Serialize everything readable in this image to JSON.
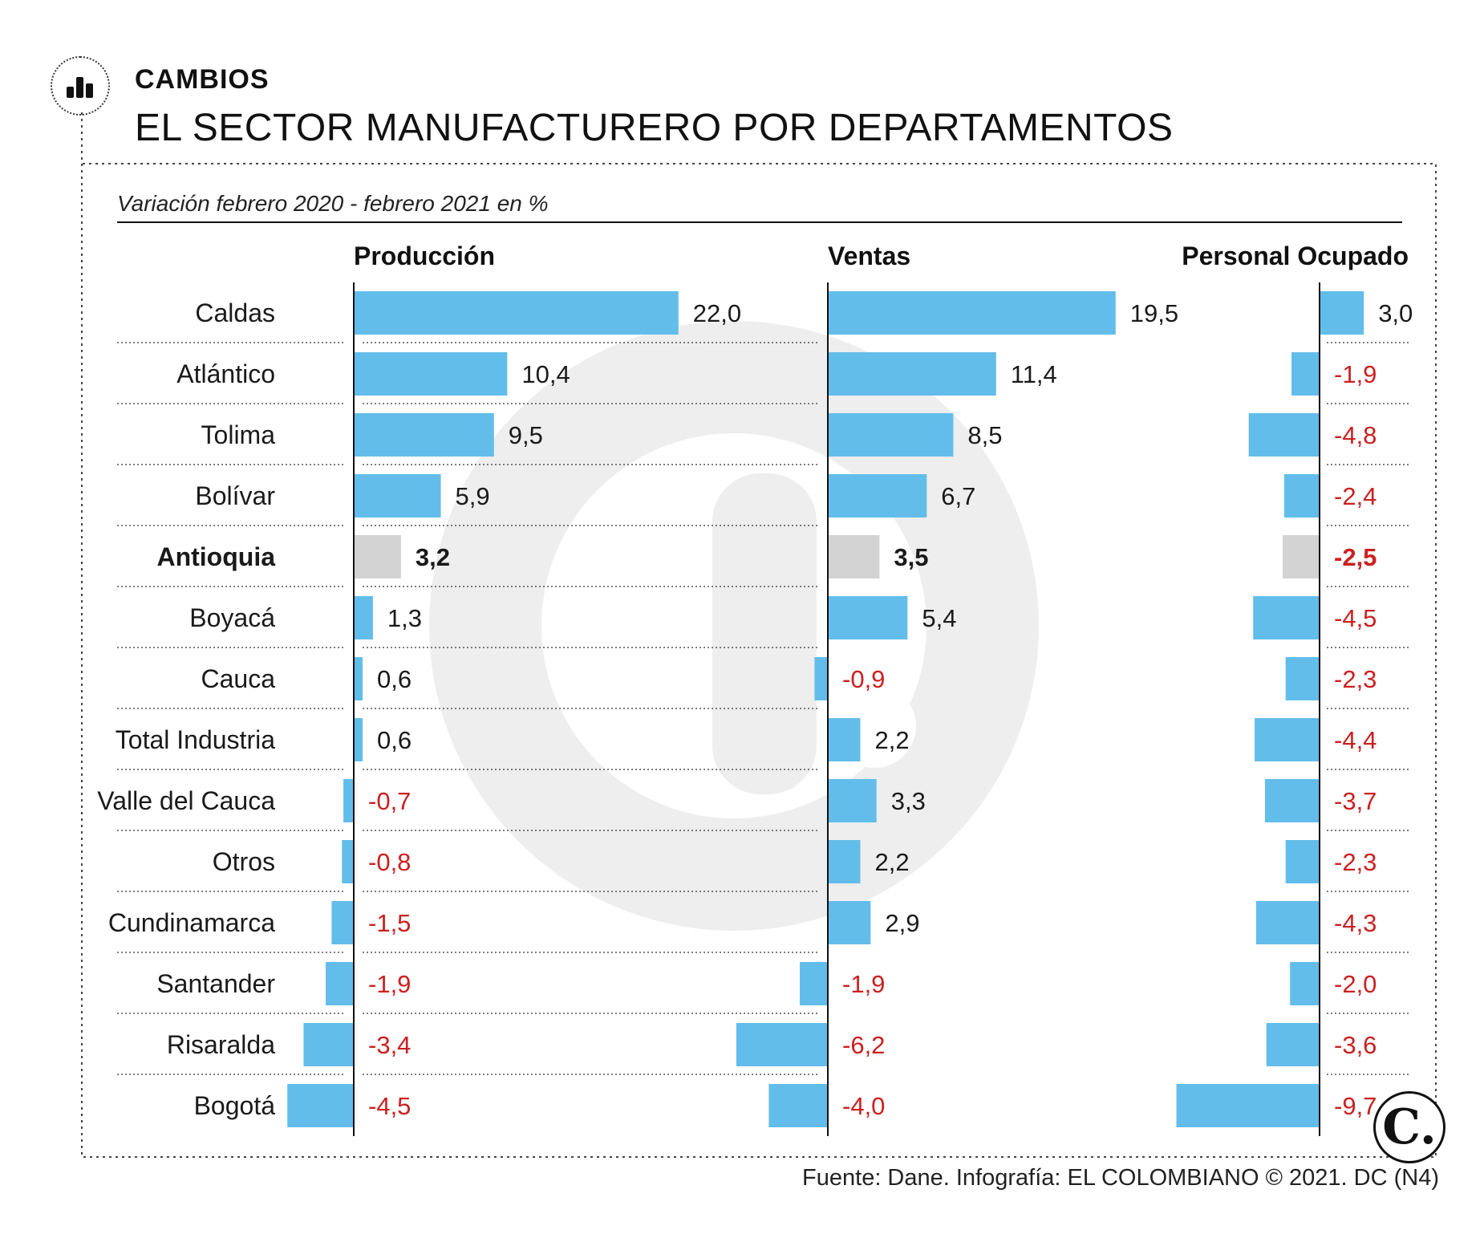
{
  "header": {
    "kicker": "CAMBIOS",
    "title": "EL SECTOR MANUFACTURERO POR DEPARTAMENTOS",
    "icon": "bar-chart-icon"
  },
  "footer": {
    "source": "Fuente: Dane. Infografía: EL COLOMBIANO © 2021. DC (N4)",
    "logo": "C."
  },
  "colors": {
    "bar": "#63bdea",
    "highlight_bar": "#d3d3d3",
    "negative_text": "#cc2020",
    "positive_text": "#1a1a1a"
  },
  "chart_data": {
    "type": "bar",
    "orientation": "horizontal",
    "subtitle": "Variación febrero 2020 - febrero 2021 en %",
    "highlight": "Antioquia",
    "categories": [
      "Caldas",
      "Atlántico",
      "Tolima",
      "Bolívar",
      "Antioquia",
      "Boyacá",
      "Cauca",
      "Total Industria",
      "Valle del Cauca",
      "Otros",
      "Cundinamarca",
      "Santander",
      "Risaralda",
      "Bogotá"
    ],
    "series": [
      {
        "name": "Producción",
        "values": [
          22.0,
          10.4,
          9.5,
          5.9,
          3.2,
          1.3,
          0.6,
          0.6,
          -0.7,
          -0.8,
          -1.5,
          -1.9,
          -3.4,
          -4.5
        ],
        "labels": [
          "22,0",
          "10,4",
          "9,5",
          "5,9",
          "3,2",
          "1,3",
          "0,6",
          "0,6",
          "-0,7",
          "-0,8",
          "-1,5",
          "-1,9",
          "-3,4",
          "-4,5"
        ]
      },
      {
        "name": "Ventas",
        "values": [
          19.5,
          11.4,
          8.5,
          6.7,
          3.5,
          5.4,
          -0.9,
          2.2,
          3.3,
          2.2,
          2.9,
          -1.9,
          -6.2,
          -4.0
        ],
        "labels": [
          "19,5",
          "11,4",
          "8,5",
          "6,7",
          "3,5",
          "5,4",
          "-0,9",
          "2,2",
          "3,3",
          "2,2",
          "2,9",
          "-1,9",
          "-6,2",
          "-4,0"
        ]
      },
      {
        "name": "Personal Ocupado",
        "values": [
          3.0,
          -1.9,
          -4.8,
          -2.4,
          -2.5,
          -4.5,
          -2.3,
          -4.4,
          -3.7,
          -2.3,
          -4.3,
          -2.0,
          -3.6,
          -9.7
        ],
        "labels": [
          "3,0",
          "-1,9",
          "-4,8",
          "-2,4",
          "-2,5",
          "-4,5",
          "-2,3",
          "-4,4",
          "-3,7",
          "-2,3",
          "-4,3",
          "-2,0",
          "-3,6",
          "-9,7"
        ]
      }
    ]
  }
}
